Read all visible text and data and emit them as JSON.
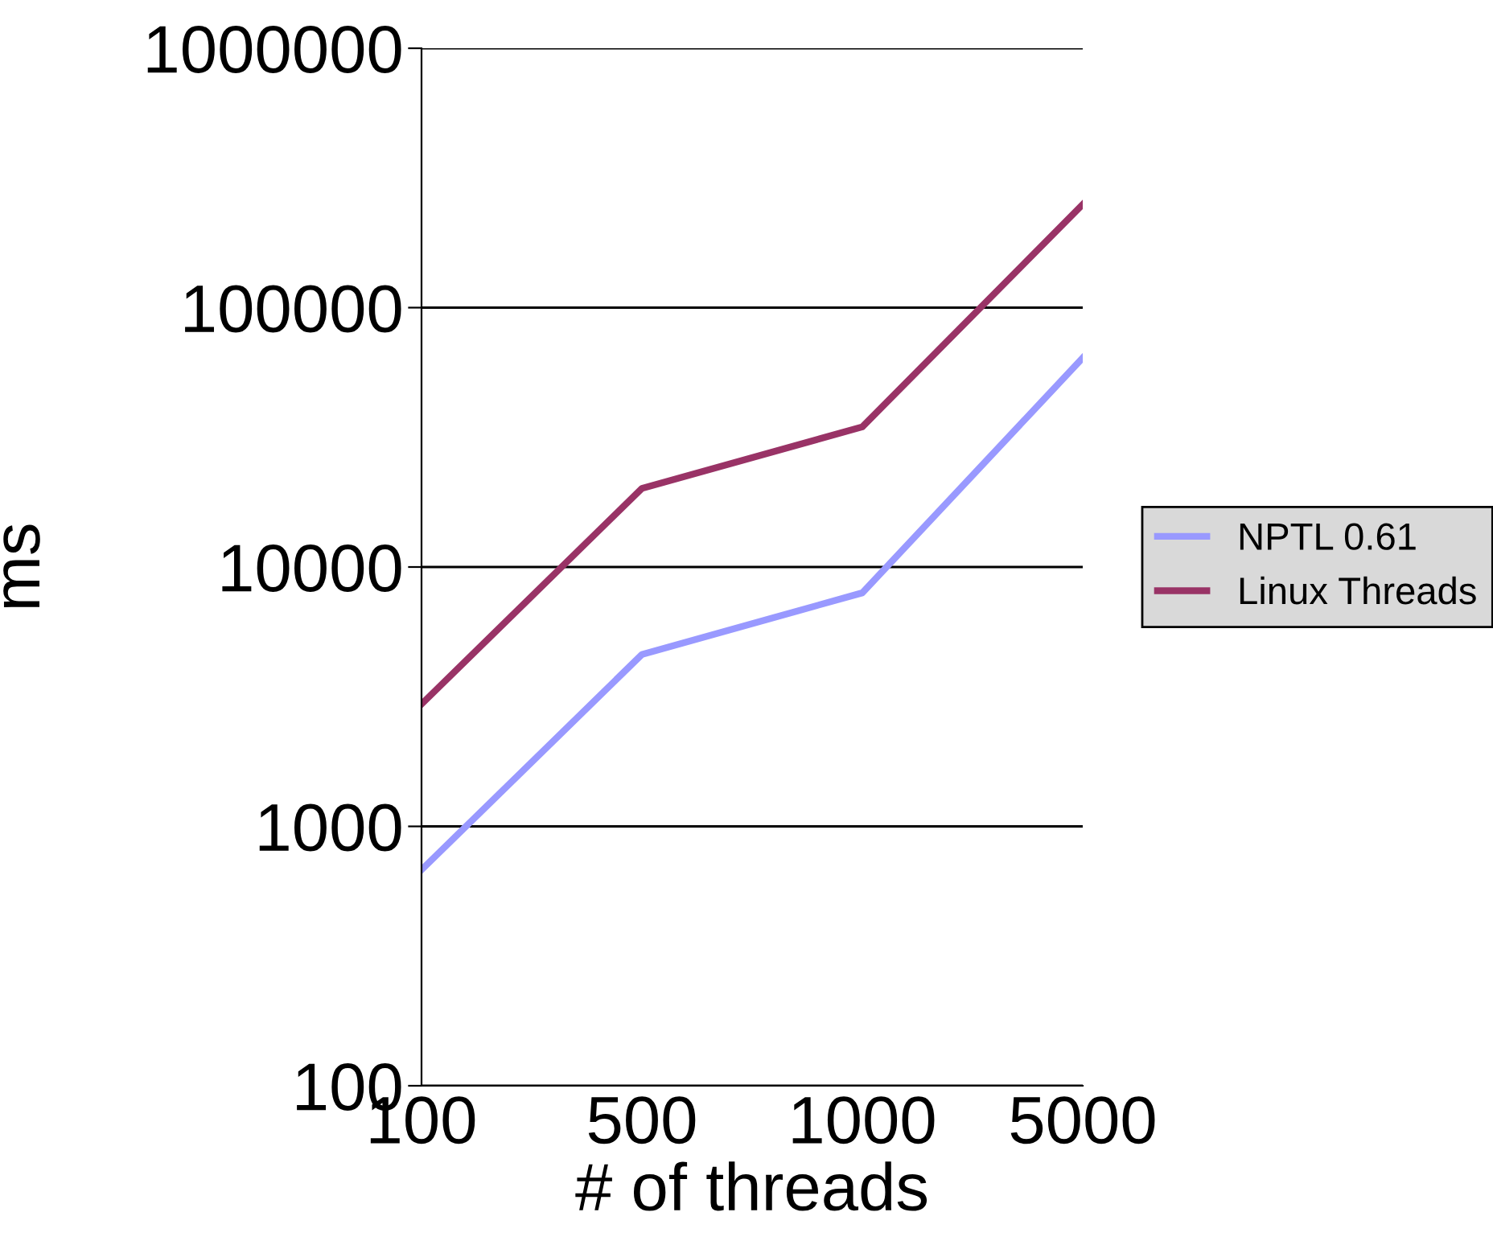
{
  "chart_data": {
    "type": "line",
    "xlabel": "# of threads",
    "ylabel": "ms",
    "categories": [
      "100",
      "500",
      "1000",
      "5000"
    ],
    "series": [
      {
        "name": "NPTL 0.61",
        "color": "#9999ff",
        "values": [
          680,
          4600,
          7950,
          64000
        ]
      },
      {
        "name": "Linux Threads",
        "color": "#993366",
        "values": [
          2960,
          20100,
          34700,
          250000
        ]
      }
    ],
    "log": true,
    "ylim": [
      100,
      1000000
    ],
    "yticks": [
      100,
      1000,
      10000,
      100000,
      1000000
    ],
    "grid": "y",
    "legend": "right",
    "marker": "none",
    "line_style": "solid"
  }
}
